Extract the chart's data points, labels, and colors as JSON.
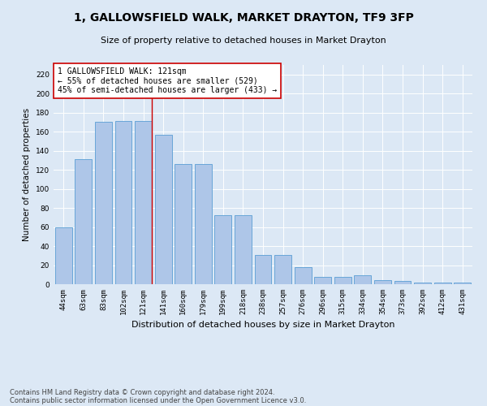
{
  "title1": "1, GALLOWSFIELD WALK, MARKET DRAYTON, TF9 3FP",
  "title2": "Size of property relative to detached houses in Market Drayton",
  "xlabel": "Distribution of detached houses by size in Market Drayton",
  "ylabel": "Number of detached properties",
  "categories": [
    "44sqm",
    "63sqm",
    "83sqm",
    "102sqm",
    "121sqm",
    "141sqm",
    "160sqm",
    "179sqm",
    "199sqm",
    "218sqm",
    "238sqm",
    "257sqm",
    "276sqm",
    "296sqm",
    "315sqm",
    "334sqm",
    "354sqm",
    "373sqm",
    "392sqm",
    "412sqm",
    "431sqm"
  ],
  "values": [
    60,
    131,
    170,
    171,
    171,
    157,
    126,
    126,
    72,
    72,
    31,
    31,
    18,
    8,
    8,
    9,
    4,
    3,
    2,
    2,
    2
  ],
  "bar_color": "#aec6e8",
  "bar_edge_color": "#5a9fd4",
  "highlight_index": 4,
  "highlight_line_color": "#cc0000",
  "annotation_text": "1 GALLOWSFIELD WALK: 121sqm\n← 55% of detached houses are smaller (529)\n45% of semi-detached houses are larger (433) →",
  "annotation_box_color": "#ffffff",
  "annotation_box_edge_color": "#cc0000",
  "ylim": [
    0,
    230
  ],
  "yticks": [
    0,
    20,
    40,
    60,
    80,
    100,
    120,
    140,
    160,
    180,
    200,
    220
  ],
  "bg_color": "#dce8f5",
  "plot_bg_color": "#dce8f5",
  "footer1": "Contains HM Land Registry data © Crown copyright and database right 2024.",
  "footer2": "Contains public sector information licensed under the Open Government Licence v3.0.",
  "title1_fontsize": 10,
  "title2_fontsize": 8,
  "xlabel_fontsize": 8,
  "ylabel_fontsize": 7.5,
  "tick_fontsize": 6.5,
  "annotation_fontsize": 7,
  "footer_fontsize": 6
}
